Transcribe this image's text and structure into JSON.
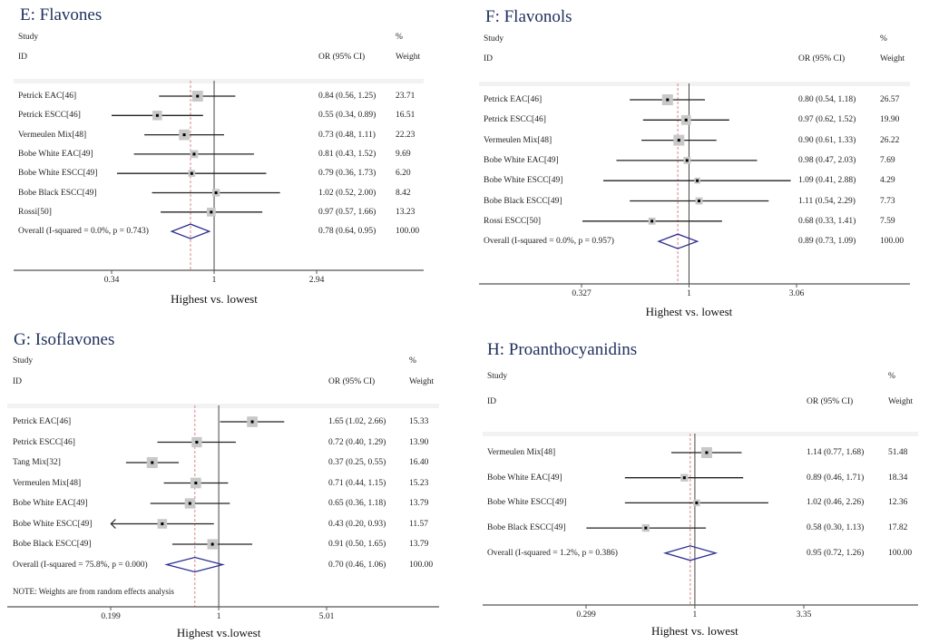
{
  "chart_data": [
    {
      "type": "forest",
      "title": "E: Flavones",
      "header": {
        "study": "Study",
        "id": "ID",
        "or": "OR (95% CI)",
        "pct": "%",
        "weight": "Weight"
      },
      "xlabel": "Highest vs. lowest",
      "xscale": "log",
      "ticks": [
        {
          "value": 0.34,
          "label": "0.34"
        },
        {
          "value": 1,
          "label": "1"
        },
        {
          "value": 2.94,
          "label": "2.94"
        }
      ],
      "xlim": [
        0.058,
        6.5
      ],
      "studies": [
        {
          "id": "Petrick EAC[46]",
          "or": 0.84,
          "lo": 0.56,
          "hi": 1.25,
          "or_text": "0.84 (0.56, 1.25)",
          "weight": "23.71"
        },
        {
          "id": "Petrick ESCC[46]",
          "or": 0.55,
          "lo": 0.34,
          "hi": 0.89,
          "or_text": "0.55 (0.34, 0.89)",
          "weight": "16.51"
        },
        {
          "id": "Vermeulen Mix[48]",
          "or": 0.73,
          "lo": 0.48,
          "hi": 1.11,
          "or_text": "0.73 (0.48, 1.11)",
          "weight": "22.23"
        },
        {
          "id": "Bobe White EAC[49]",
          "or": 0.81,
          "lo": 0.43,
          "hi": 1.52,
          "or_text": "0.81 (0.43, 1.52)",
          "weight": "9.69"
        },
        {
          "id": "Bobe White ESCC[49]",
          "or": 0.79,
          "lo": 0.36,
          "hi": 1.73,
          "or_text": "0.79 (0.36, 1.73)",
          "weight": "6.20"
        },
        {
          "id": "Bobe Black ESCC[49]",
          "or": 1.02,
          "lo": 0.52,
          "hi": 2.0,
          "or_text": "1.02 (0.52, 2.00)",
          "weight": "8.42"
        },
        {
          "id": "Rossi[50]",
          "or": 0.97,
          "lo": 0.57,
          "hi": 1.66,
          "or_text": "0.97 (0.57, 1.66)",
          "weight": "13.23"
        }
      ],
      "overall": {
        "label": "Overall  (I-squared = 0.0%, p = 0.743)",
        "or": 0.78,
        "lo": 0.64,
        "hi": 0.95,
        "or_text": "0.78 (0.64, 0.95)",
        "weight": "100.00"
      },
      "note": ""
    },
    {
      "type": "forest",
      "title": "F: Flavonols",
      "header": {
        "study": "Study",
        "id": "ID",
        "or": "OR (95% CI)",
        "pct": "%",
        "weight": "Weight"
      },
      "xlabel": "Highest vs. lowest",
      "xscale": "log",
      "ticks": [
        {
          "value": 0.327,
          "label": "0.327"
        },
        {
          "value": 1,
          "label": "1"
        },
        {
          "value": 3.06,
          "label": "3.06"
        }
      ],
      "xlim": [
        0.084,
        7.2
      ],
      "studies": [
        {
          "id": "Petrick EAC[46]",
          "or": 0.8,
          "lo": 0.54,
          "hi": 1.18,
          "or_text": "0.80 (0.54, 1.18)",
          "weight": "26.57"
        },
        {
          "id": "Petrick ESCC[46]",
          "or": 0.97,
          "lo": 0.62,
          "hi": 1.52,
          "or_text": "0.97 (0.62, 1.52)",
          "weight": "19.90"
        },
        {
          "id": "Vermeulen Mix[48]",
          "or": 0.9,
          "lo": 0.61,
          "hi": 1.33,
          "or_text": "0.90 (0.61, 1.33)",
          "weight": "26.22"
        },
        {
          "id": "Bobe White EAC[49]",
          "or": 0.98,
          "lo": 0.47,
          "hi": 2.03,
          "or_text": "0.98 (0.47, 2.03)",
          "weight": "7.69"
        },
        {
          "id": "Bobe White ESCC[49]",
          "or": 1.09,
          "lo": 0.41,
          "hi": 2.88,
          "or_text": "1.09 (0.41, 2.88)",
          "weight": "4.29"
        },
        {
          "id": "Bobe Black ESCC[49]",
          "or": 1.11,
          "lo": 0.54,
          "hi": 2.29,
          "or_text": "1.11 (0.54, 2.29)",
          "weight": "7.73"
        },
        {
          "id": "Rossi ESCC[50]",
          "or": 0.68,
          "lo": 0.33,
          "hi": 1.41,
          "or_text": "0.68 (0.33, 1.41)",
          "weight": "7.59"
        }
      ],
      "overall": {
        "label": "Overall  (I-squared = 0.0%, p = 0.957)",
        "or": 0.89,
        "lo": 0.73,
        "hi": 1.09,
        "or_text": "0.89 (0.73, 1.09)",
        "weight": "100.00"
      },
      "note": ""
    },
    {
      "type": "forest",
      "title": "G: Isoflavones",
      "header": {
        "study": "Study",
        "id": "ID",
        "or": "OR (95% CI)",
        "pct": "%",
        "weight": "Weight"
      },
      "xlabel": "Highest vs.lowest",
      "xscale": "log",
      "ticks": [
        {
          "value": 0.199,
          "label": "0.199"
        },
        {
          "value": 1,
          "label": "1"
        },
        {
          "value": 5.01,
          "label": "5.01"
        }
      ],
      "xlim": [
        0.0235,
        26.0
      ],
      "studies": [
        {
          "id": "Petrick EAC[46]",
          "or": 1.65,
          "lo": 1.02,
          "hi": 2.66,
          "or_text": "1.65 (1.02, 2.66)",
          "weight": "15.33"
        },
        {
          "id": "Petrick ESCC[46]",
          "or": 0.72,
          "lo": 0.4,
          "hi": 1.29,
          "or_text": "0.72 (0.40, 1.29)",
          "weight": "13.90"
        },
        {
          "id": "Tang Mix[32]",
          "or": 0.37,
          "lo": 0.25,
          "hi": 0.55,
          "or_text": "0.37 (0.25, 0.55)",
          "weight": "16.40"
        },
        {
          "id": "Vermeulen Mix[48]",
          "or": 0.71,
          "lo": 0.44,
          "hi": 1.15,
          "or_text": "0.71 (0.44, 1.15)",
          "weight": "15.23"
        },
        {
          "id": "Bobe White EAC[49]",
          "or": 0.65,
          "lo": 0.36,
          "hi": 1.18,
          "or_text": "0.65 (0.36, 1.18)",
          "weight": "13.79"
        },
        {
          "id": "Bobe White ESCC[49]",
          "or": 0.43,
          "lo": 0.2,
          "hi": 0.93,
          "or_text": "0.43 (0.20, 0.93)",
          "weight": "11.57",
          "arrow_left": true
        },
        {
          "id": "Bobe Black ESCC[49]",
          "or": 0.91,
          "lo": 0.5,
          "hi": 1.65,
          "or_text": "0.91 (0.50, 1.65)",
          "weight": "13.79"
        }
      ],
      "overall": {
        "label": "Overall  (I-squared = 75.8%, p = 0.000)",
        "or": 0.7,
        "lo": 0.46,
        "hi": 1.06,
        "or_text": "0.70 (0.46, 1.06)",
        "weight": "100.00"
      },
      "note": "NOTE: Weights are from random effects analysis"
    },
    {
      "type": "forest",
      "title": "H: Proanthocyanidins",
      "header": {
        "study": "Study",
        "id": "ID",
        "or": "OR (95% CI)",
        "pct": "%",
        "weight": "Weight"
      },
      "xlabel": "Highest vs. lowest",
      "xscale": "log",
      "ticks": [
        {
          "value": 0.299,
          "label": "0.299"
        },
        {
          "value": 1,
          "label": "1"
        },
        {
          "value": 3.35,
          "label": "3.35"
        }
      ],
      "xlim": [
        0.068,
        9.0
      ],
      "studies": [
        {
          "id": "Vermeulen Mix[48]",
          "or": 1.14,
          "lo": 0.77,
          "hi": 1.68,
          "or_text": "1.14 (0.77, 1.68)",
          "weight": "51.48"
        },
        {
          "id": "Bobe White EAC[49]",
          "or": 0.89,
          "lo": 0.46,
          "hi": 1.71,
          "or_text": "0.89 (0.46, 1.71)",
          "weight": "18.34"
        },
        {
          "id": "Bobe White ESCC[49]",
          "or": 1.02,
          "lo": 0.46,
          "hi": 2.26,
          "or_text": "1.02 (0.46, 2.26)",
          "weight": "12.36"
        },
        {
          "id": "Bobe Black ESCC[49]",
          "or": 0.58,
          "lo": 0.3,
          "hi": 1.13,
          "or_text": "0.58 (0.30, 1.13)",
          "weight": "17.82"
        }
      ],
      "overall": {
        "label": "Overall  (I-squared = 1.2%, p = 0.386)",
        "or": 0.95,
        "lo": 0.72,
        "hi": 1.26,
        "or_text": "0.95 (0.72, 1.26)",
        "weight": "100.00"
      },
      "note": ""
    }
  ],
  "colors": {
    "title": "#1f2f5c",
    "diamond": "#2b2f8f",
    "dashed_line": "#d9868a",
    "weight_box": "#c8c8c8",
    "axis": "#555555"
  }
}
